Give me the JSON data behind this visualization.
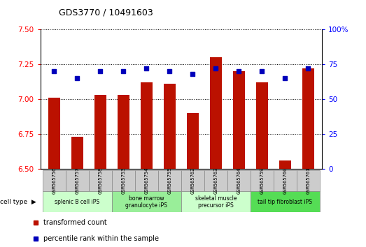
{
  "title": "GDS3770 / 10491603",
  "samples": [
    "GSM565756",
    "GSM565757",
    "GSM565758",
    "GSM565753",
    "GSM565754",
    "GSM565755",
    "GSM565762",
    "GSM565763",
    "GSM565764",
    "GSM565759",
    "GSM565760",
    "GSM565761"
  ],
  "transformed_count": [
    7.01,
    6.73,
    7.03,
    7.03,
    7.12,
    7.11,
    6.9,
    7.3,
    7.2,
    7.12,
    6.56,
    7.22
  ],
  "percentile_rank": [
    70,
    65,
    70,
    70,
    72,
    70,
    68,
    72,
    70,
    70,
    65,
    72
  ],
  "cell_types": [
    {
      "label": "splenic B cell iPS",
      "start": 0,
      "end": 3,
      "color": "#ccffcc"
    },
    {
      "label": "bone marrow\ngranulocyte iPS",
      "start": 3,
      "end": 6,
      "color": "#99ee99"
    },
    {
      "label": "skeletal muscle\nprecursor iPS",
      "start": 6,
      "end": 9,
      "color": "#ccffcc"
    },
    {
      "label": "tail tip fibroblast iPS",
      "start": 9,
      "end": 12,
      "color": "#55dd55"
    }
  ],
  "ylim_left": [
    6.5,
    7.5
  ],
  "ylim_right": [
    0,
    100
  ],
  "yticks_left": [
    6.5,
    6.75,
    7.0,
    7.25,
    7.5
  ],
  "yticks_right": [
    0,
    25,
    50,
    75,
    100
  ],
  "bar_color": "#bb1100",
  "dot_color": "#0000bb",
  "bar_width": 0.5,
  "grid_color": "black",
  "grid_linestyle": "dotted",
  "sample_box_color": "#cccccc",
  "fig_bg": "#ffffff"
}
